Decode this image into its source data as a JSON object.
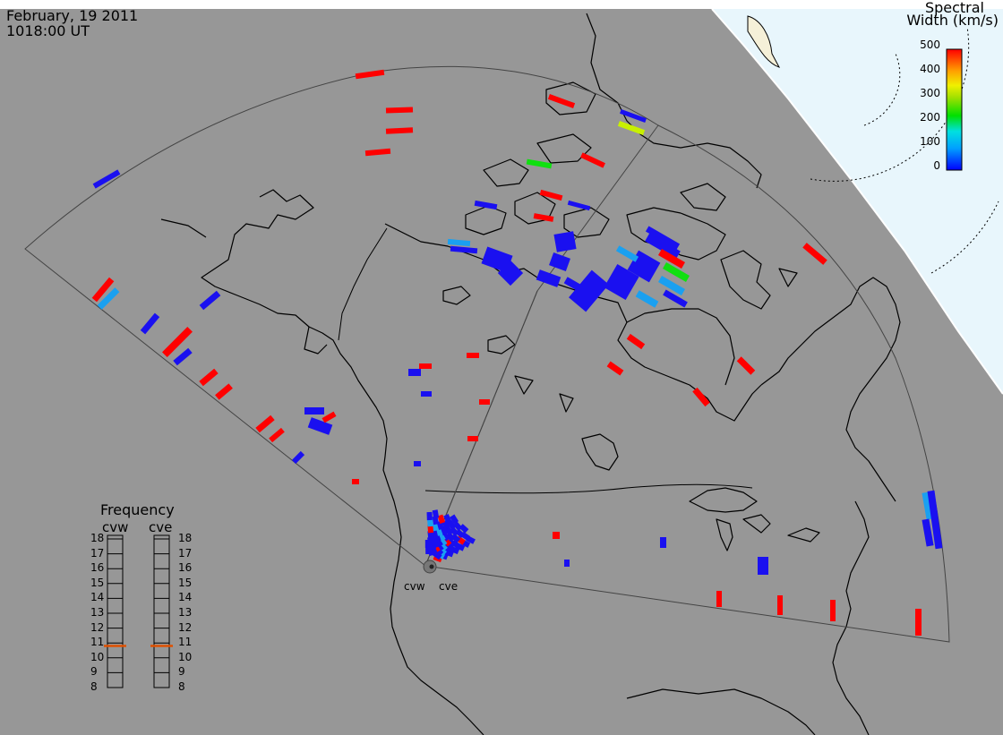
{
  "header": {
    "date": "February, 19 2011",
    "time": "1018:00 UT"
  },
  "colorbar": {
    "title_line1": "Spectral",
    "title_line2": "Width (km/s)",
    "ticks": [
      "500",
      "400",
      "300",
      "200",
      "100",
      "0"
    ],
    "range": [
      0,
      500
    ],
    "colors": [
      "#0000ff",
      "#00a0ff",
      "#00e0e0",
      "#00e000",
      "#a0e000",
      "#f0f000",
      "#ffa000",
      "#ff0000"
    ]
  },
  "frequency_panel": {
    "title": "Frequency",
    "radars": [
      "cvw",
      "cve"
    ],
    "levels": [
      "18",
      "17",
      "16",
      "15",
      "14",
      "13",
      "12",
      "11",
      "10",
      "9",
      "8"
    ],
    "cvw_freq_mhz": 10.8,
    "cve_freq_mhz": 10.8,
    "marker_color": "#e05000"
  },
  "radar_sites": {
    "west": "cvw",
    "east": "cve"
  },
  "colors": {
    "background": "#979797",
    "polar_cap": "#e8f6fc",
    "coastline": "#000000",
    "fov_line": "#444444"
  }
}
